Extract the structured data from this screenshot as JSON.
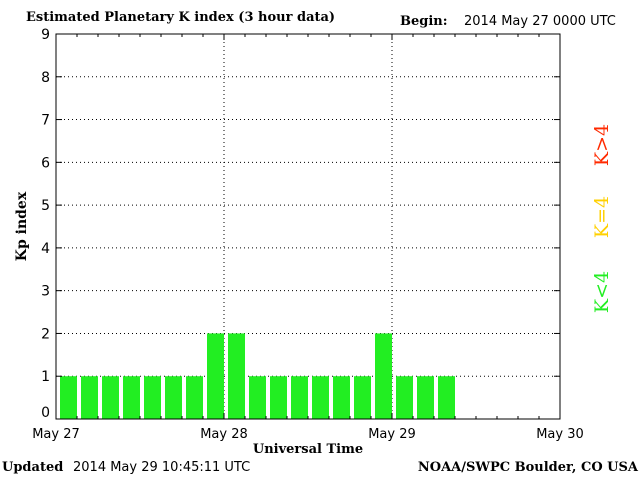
{
  "header": {
    "title": "Estimated Planetary K index (3 hour data)",
    "begin_label": "Begin:",
    "begin_value": "2014 May 27 0000 UTC"
  },
  "footer": {
    "updated_label": "Updated",
    "updated_value": "2014 May 29 10:45:11 UTC",
    "credit": "NOAA/SWPC Boulder, CO USA"
  },
  "legend": [
    {
      "label": "K>4",
      "color": "#ff2a00"
    },
    {
      "label": "K=4",
      "color": "#ffd000"
    },
    {
      "label": "K<4",
      "color": "#22ee22"
    }
  ],
  "chart_data": {
    "type": "bar",
    "title": "Estimated Planetary K index (3 hour data)",
    "xlabel": "Universal Time",
    "ylabel": "Kp index",
    "ylim": [
      0,
      9
    ],
    "yticks": [
      0,
      1,
      2,
      3,
      4,
      5,
      6,
      7,
      8,
      9
    ],
    "xticks": [
      "May 27",
      "May 28",
      "May 29",
      "May 30"
    ],
    "interval_hours": 3,
    "bar_color": "#22ee22",
    "grid": true,
    "series": [
      {
        "values": [
          1,
          1,
          1,
          1,
          1,
          1,
          1,
          2,
          2,
          1,
          1,
          1,
          1,
          1,
          1,
          2,
          1,
          1,
          1
        ]
      }
    ]
  }
}
